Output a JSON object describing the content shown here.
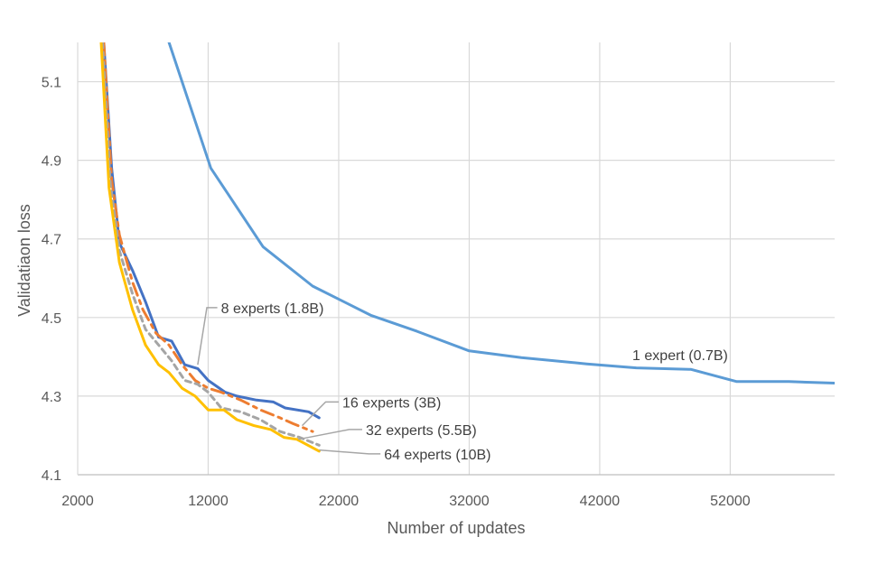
{
  "chart_data": {
    "type": "line",
    "title": "",
    "xlabel": "Number of updates",
    "ylabel": "Validatiaon loss",
    "xlim": [
      2000,
      60000
    ],
    "ylim": [
      4.1,
      5.2
    ],
    "xticks": [
      2000,
      12000,
      22000,
      32000,
      42000,
      52000
    ],
    "yticks": [
      4.1,
      4.3,
      4.5,
      4.7,
      4.9,
      5.1
    ],
    "xtick_labels": [
      "2000",
      "12000",
      "22000",
      "32000",
      "42000",
      "52000"
    ],
    "ytick_labels": [
      "4.1",
      "4.3",
      "4.5",
      "4.7",
      "4.9",
      "5.1"
    ],
    "grid": true,
    "legend": "none (inline annotations)",
    "series": [
      {
        "name": "1 expert (0.7B)",
        "color": "#5B9BD5",
        "dash": "solid",
        "x": [
          9000,
          12200,
          16200,
          20000,
          24500,
          28000,
          32000,
          36000,
          41000,
          44800,
          49000,
          52500,
          56500,
          60000
        ],
        "y": [
          5.2,
          4.88,
          4.68,
          4.58,
          4.505,
          4.465,
          4.415,
          4.398,
          4.382,
          4.372,
          4.368,
          4.337,
          4.337,
          4.333
        ]
      },
      {
        "name": "8 experts (1.8B)",
        "color": "#4472C4",
        "dash": "solid",
        "x": [
          4000,
          4600,
          5200,
          6200,
          7200,
          8200,
          9200,
          10200,
          11200,
          12000,
          13300,
          14200,
          15700,
          17000,
          17900,
          19700,
          20500
        ],
        "y": [
          5.2,
          4.88,
          4.69,
          4.62,
          4.54,
          4.45,
          4.44,
          4.38,
          4.37,
          4.34,
          4.31,
          4.3,
          4.29,
          4.285,
          4.27,
          4.26,
          4.245
        ]
      },
      {
        "name": "16 experts (3B)",
        "color": "#ED7D31",
        "dash": "longdash",
        "x": [
          4000,
          4600,
          5200,
          6200,
          7000,
          8000,
          9000,
          10000,
          11000,
          12000,
          13000,
          14500,
          16000,
          17500,
          18500,
          20000
        ],
        "y": [
          5.2,
          4.85,
          4.71,
          4.59,
          4.52,
          4.46,
          4.43,
          4.38,
          4.34,
          4.32,
          4.31,
          4.29,
          4.265,
          4.245,
          4.23,
          4.21
        ]
      },
      {
        "name": "32 experts (5.5B)",
        "color": "#A5A5A5",
        "dash": "dash",
        "x": [
          3900,
          4500,
          5200,
          6200,
          7200,
          8200,
          9200,
          10200,
          11200,
          12000,
          13000,
          14500,
          16000,
          17500,
          19000,
          20500
        ],
        "y": [
          5.2,
          4.84,
          4.67,
          4.56,
          4.47,
          4.43,
          4.39,
          4.34,
          4.33,
          4.31,
          4.27,
          4.26,
          4.24,
          4.21,
          4.195,
          4.175
        ]
      },
      {
        "name": "64 experts (10B)",
        "color": "#FFC000",
        "dash": "solid",
        "x": [
          3800,
          4400,
          5200,
          6200,
          7200,
          8200,
          9000,
          10000,
          11000,
          12000,
          13200,
          14200,
          15500,
          16800,
          17800,
          18800,
          20500
        ],
        "y": [
          5.2,
          4.83,
          4.64,
          4.52,
          4.43,
          4.38,
          4.36,
          4.32,
          4.3,
          4.265,
          4.265,
          4.24,
          4.225,
          4.215,
          4.195,
          4.19,
          4.16
        ]
      }
    ],
    "annotations": [
      {
        "text": "1 expert (0.7B)",
        "series": 0,
        "leader": false,
        "label_at": [
          44500,
          4.405
        ]
      },
      {
        "text": "8 experts (1.8B)",
        "series": 1,
        "leader": true,
        "point": [
          11200,
          4.38
        ],
        "elbow": [
          11900,
          4.525
        ],
        "label_at": [
          12700,
          4.525
        ]
      },
      {
        "text": "16 experts (3B)",
        "series": 2,
        "leader": true,
        "point": [
          19200,
          4.225
        ],
        "elbow": [
          21000,
          4.285
        ],
        "label_at": [
          22000,
          4.285
        ]
      },
      {
        "text": "32 experts (5.5B)",
        "series": 3,
        "leader": true,
        "point": [
          18900,
          4.19
        ],
        "elbow": [
          22800,
          4.215
        ],
        "label_at": [
          23800,
          4.215
        ]
      },
      {
        "text": "64 experts (10B)",
        "series": 4,
        "leader": true,
        "point": [
          20500,
          4.163
        ],
        "elbow": [
          24300,
          4.153
        ],
        "label_at": [
          25200,
          4.153
        ]
      }
    ]
  }
}
